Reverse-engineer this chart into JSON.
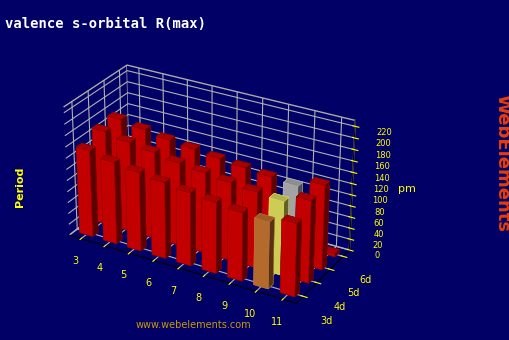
{
  "title": "valence s-orbital R(max)",
  "ylabel": "pm",
  "periods": [
    "3d",
    "4d",
    "5d",
    "6d"
  ],
  "groups": [
    3,
    4,
    5,
    6,
    7,
    8,
    9,
    10,
    11
  ],
  "values_3d": [
    156,
    147,
    141,
    136,
    130,
    126,
    121,
    118,
    128
  ],
  "values_4d": [
    170,
    162,
    156,
    149,
    144,
    139,
    135,
    131,
    145
  ],
  "values_5d": [
    172,
    165,
    158,
    153,
    148,
    144,
    140,
    136,
    150
  ],
  "values_6d": [
    5,
    5,
    5,
    5,
    5,
    5,
    5,
    5,
    5
  ],
  "default_color": "#dd0000",
  "special_color_g10_3d": "#cc7733",
  "special_color_g10_4d": "#e8e860",
  "special_color_g10_5d": "#b8b8b8",
  "special_color_g11_3d": "#dd0000",
  "special_color_g11_4d": "#dd0000",
  "special_color_g11_5d": "#dd0000",
  "background_color": "#000066",
  "floor_color": "#606060",
  "grid_color": "#aaaaaa",
  "text_color": "#ffff00",
  "title_color": "#ffffff",
  "yticks": [
    0,
    20,
    40,
    60,
    80,
    100,
    120,
    140,
    160,
    180,
    200,
    220
  ],
  "ylim": [
    0,
    230
  ],
  "watermark": "www.webelements.com",
  "watermark_color": "#ddaa00",
  "logo_text": "WebElements",
  "logo_color": "#ff4400",
  "elev": 28,
  "azim": -60
}
